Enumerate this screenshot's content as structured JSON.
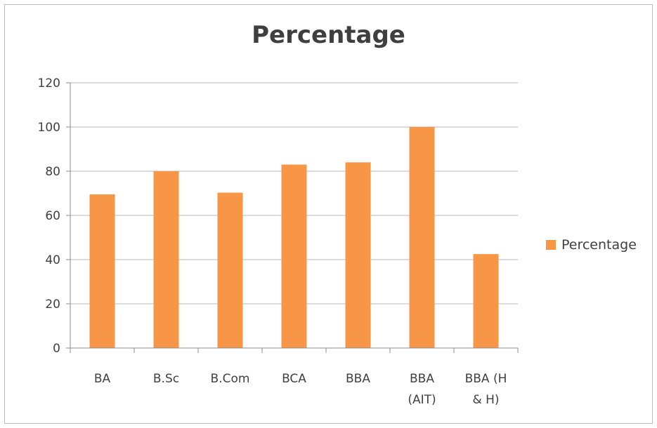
{
  "chart_data": {
    "type": "bar",
    "title": "Percentage",
    "xlabel": "",
    "ylabel": "",
    "categories": [
      [
        "BA"
      ],
      [
        "B.Sc"
      ],
      [
        "B.Com"
      ],
      [
        "BCA"
      ],
      [
        "BBA"
      ],
      [
        "BBA",
        "(AIT)"
      ],
      [
        "BBA (H",
        "& H)"
      ]
    ],
    "series": [
      {
        "name": "Percentage",
        "color": "#f79646",
        "values": [
          69.5,
          80,
          70.3,
          83,
          84,
          100,
          42.5
        ]
      }
    ],
    "ylim": [
      0,
      120
    ],
    "yticks": [
      "0",
      "20",
      "40",
      "60",
      "80",
      "100",
      "120"
    ],
    "grid": true,
    "legend_position": "right"
  }
}
